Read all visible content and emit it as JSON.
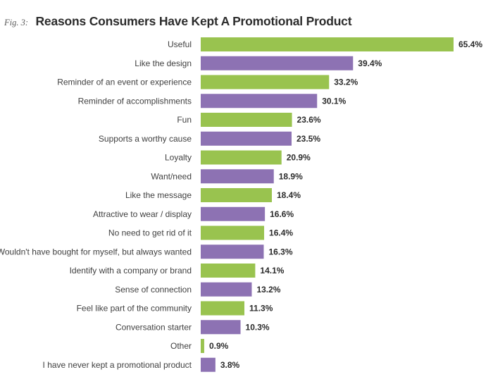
{
  "figure_label": "Fig. 3:",
  "chart_data": {
    "type": "bar",
    "orientation": "horizontal",
    "title": "Reasons Consumers Have Kept A Promotional Product",
    "xlabel": "",
    "ylabel": "",
    "xlim": [
      0,
      65.4
    ],
    "value_suffix": "%",
    "colors": [
      "#99c34f",
      "#8d72b3"
    ],
    "categories": [
      "Useful",
      "Like the design",
      "Reminder of an event or experience",
      "Reminder of accomplishments",
      "Fun",
      "Supports a worthy cause",
      "Loyalty",
      "Want/need",
      "Like the message",
      "Attractive to wear / display",
      "No need to get rid of it",
      "Wouldn't have bought for myself, but always wanted",
      "Identify with a company or brand",
      "Sense of connection",
      "Feel like part of the community",
      "Conversation starter",
      "Other",
      "I have never kept a promotional product"
    ],
    "values": [
      65.4,
      39.4,
      33.2,
      30.1,
      23.6,
      23.5,
      20.9,
      18.9,
      18.4,
      16.6,
      16.4,
      16.3,
      14.1,
      13.2,
      11.3,
      10.3,
      0.9,
      3.8
    ],
    "value_labels": [
      "65.4%",
      "39.4%",
      "33.2%",
      "30.1%",
      "23.6%",
      "23.5%",
      "20.9%",
      "18.9%",
      "18.4%",
      "16.6%",
      "16.4%",
      "16.3%",
      "14.1%",
      "13.2%",
      "11.3%",
      "10.3%",
      "0.9%",
      "3.8%"
    ]
  }
}
